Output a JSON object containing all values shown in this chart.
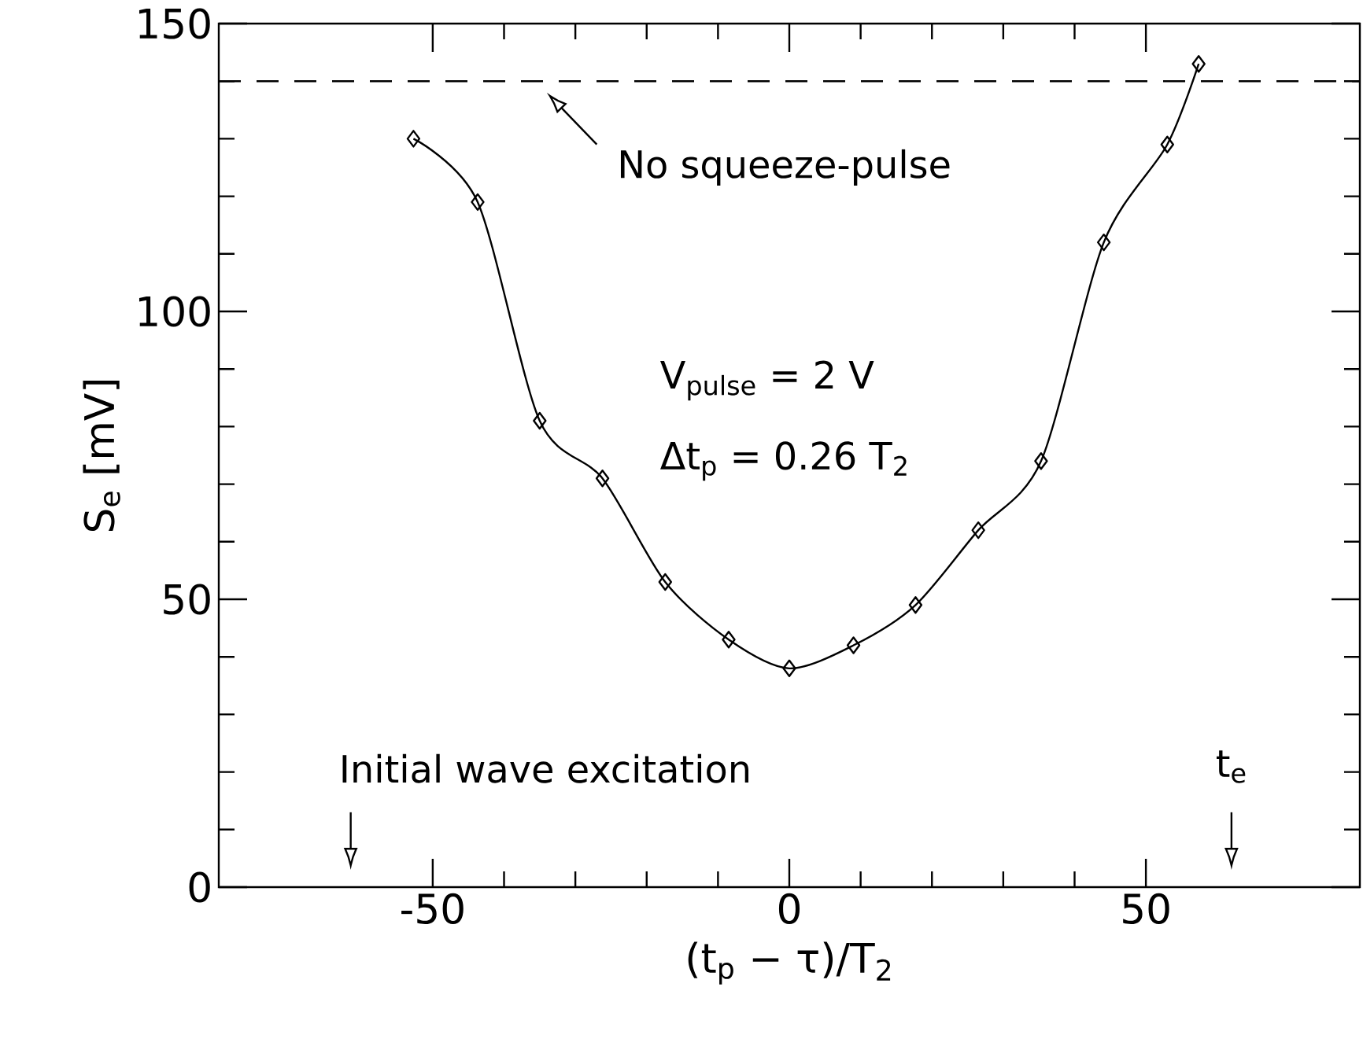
{
  "chart_data": {
    "type": "line",
    "xlabel": "(t$_{p}$ − τ)/T$_{2}$",
    "ylabel": "S$_{e}$ [mV]",
    "x": [
      -52.7,
      -43.7,
      -35,
      -26.2,
      -17.4,
      -8.5,
      0,
      9,
      17.7,
      26.5,
      35.3,
      44.1,
      53,
      57.4
    ],
    "values": [
      130,
      119,
      81,
      71,
      53,
      43,
      38,
      42,
      49,
      62,
      74,
      112,
      129,
      143
    ],
    "color": "#000000",
    "marker": "diamond",
    "line_style": "solid",
    "xlim": [
      -80,
      80
    ],
    "ylim": [
      0,
      150
    ],
    "xticks": [
      -50,
      0,
      50
    ],
    "yticks": [
      0,
      50,
      100,
      150
    ],
    "ref_lines": [
      {
        "axis": "y",
        "value": 140,
        "label": "No squeeze-pulse",
        "line_style": "dashed"
      }
    ],
    "annotations": [
      "V$_{pulse}$ = 2 V",
      "Δt$_{p}$ = 0.26 T$_{2}$",
      "Initial wave excitation",
      "t$_{e}$"
    ]
  }
}
